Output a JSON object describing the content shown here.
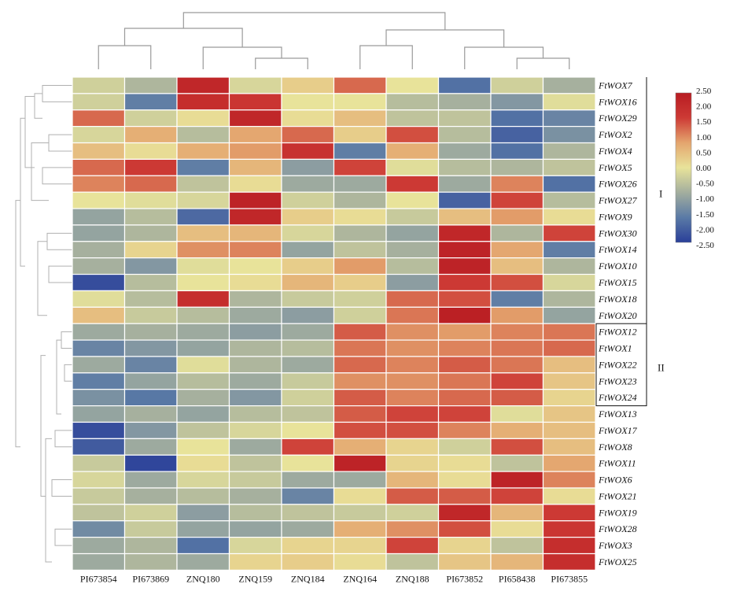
{
  "chart_data": {
    "type": "heatmap",
    "title": "",
    "columns": [
      "PI673854",
      "PI673869",
      "ZNQ180",
      "ZNQ159",
      "ZNQ184",
      "ZNQ164",
      "ZNQ188",
      "PI673852",
      "PI658438",
      "PI673855"
    ],
    "rows": [
      "FtWOX7",
      "FtWOX16",
      "FtWOX29",
      "FtWOX2",
      "FtWOX4",
      "FtWOX5",
      "FtWOX26",
      "FtWOX27",
      "FtWOX9",
      "FtWOX30",
      "FtWOX14",
      "FtWOX10",
      "FtWOX15",
      "FtWOX18",
      "FtWOX20",
      "FtWOX12",
      "FtWOX1",
      "FtWOX22",
      "FtWOX23",
      "FtWOX24",
      "FtWOX13",
      "FtWOX17",
      "FtWOX8",
      "FtWOX11",
      "FtWOX6",
      "FtWOX21",
      "FtWOX19",
      "FtWOX28",
      "FtWOX3",
      "FtWOX25"
    ],
    "values": [
      [
        -0.3,
        -0.7,
        2.2,
        -0.2,
        0.3,
        1.3,
        0.0,
        -1.8,
        -0.3,
        -0.8
      ],
      [
        -0.3,
        -1.6,
        2.0,
        1.8,
        0.0,
        0.0,
        -0.6,
        -0.8,
        -1.2,
        -0.1
      ],
      [
        1.3,
        -0.3,
        0.1,
        2.2,
        0.1,
        0.5,
        -0.5,
        -0.5,
        -1.8,
        -1.5
      ],
      [
        -0.2,
        0.7,
        -0.6,
        0.8,
        1.3,
        0.3,
        1.5,
        -0.6,
        -2.0,
        -1.3
      ],
      [
        0.5,
        0.1,
        0.7,
        0.9,
        1.9,
        -1.6,
        0.7,
        -0.9,
        -1.8,
        -0.7
      ],
      [
        1.3,
        1.7,
        -1.6,
        0.6,
        -1.1,
        1.6,
        -0.1,
        -0.6,
        -0.7,
        -0.5
      ],
      [
        1.1,
        1.3,
        -0.5,
        0.1,
        -0.9,
        -0.9,
        1.7,
        -0.9,
        1.1,
        -1.8
      ],
      [
        0.0,
        -0.1,
        -0.2,
        2.3,
        -0.3,
        -0.7,
        0.0,
        -2.0,
        1.6,
        -0.6
      ],
      [
        -1.0,
        -0.6,
        -1.9,
        2.2,
        0.3,
        0.1,
        -0.4,
        0.5,
        0.9,
        0.1
      ],
      [
        -1.0,
        -0.7,
        0.5,
        0.6,
        -0.2,
        -0.7,
        -1.0,
        2.2,
        -0.7,
        1.6
      ],
      [
        -0.8,
        0.2,
        1.0,
        1.1,
        -1.0,
        -0.5,
        -0.8,
        2.3,
        0.8,
        -1.6
      ],
      [
        -0.8,
        -1.2,
        -0.1,
        0.0,
        0.3,
        0.9,
        -0.6,
        2.3,
        0.5,
        -0.7
      ],
      [
        -2.3,
        -0.6,
        0.0,
        0.1,
        0.6,
        0.3,
        -1.1,
        1.7,
        1.5,
        -0.2
      ],
      [
        -0.1,
        -0.6,
        2.0,
        -0.7,
        -0.4,
        -0.3,
        1.3,
        1.5,
        -1.6,
        -0.7
      ],
      [
        0.5,
        -0.4,
        -0.6,
        -0.9,
        -1.1,
        -0.3,
        1.2,
        2.4,
        0.9,
        -1.0
      ],
      [
        -0.9,
        -0.8,
        -0.9,
        -1.1,
        -0.9,
        1.4,
        1.0,
        0.9,
        1.1,
        1.2
      ],
      [
        -1.5,
        -1.2,
        -1.0,
        -0.7,
        -0.6,
        1.2,
        1.0,
        1.1,
        1.2,
        1.3
      ],
      [
        -0.9,
        -1.5,
        -0.1,
        -0.7,
        -0.9,
        1.3,
        1.1,
        1.4,
        1.2,
        0.5
      ],
      [
        -1.6,
        -1.0,
        -0.6,
        -0.9,
        -0.4,
        1.0,
        1.0,
        1.2,
        1.6,
        0.4
      ],
      [
        -1.3,
        -1.7,
        -0.8,
        -1.2,
        -0.3,
        1.4,
        1.1,
        1.3,
        1.4,
        0.2
      ],
      [
        -1.0,
        -0.8,
        -1.0,
        -0.6,
        -0.5,
        1.4,
        1.6,
        1.6,
        -0.1,
        0.4
      ],
      [
        -2.3,
        -1.2,
        -0.5,
        -0.2,
        0.0,
        1.5,
        1.5,
        1.1,
        0.7,
        0.5
      ],
      [
        -2.1,
        -0.9,
        0.0,
        -0.9,
        1.6,
        0.7,
        0.2,
        -0.3,
        1.5,
        0.5
      ],
      [
        -0.4,
        -2.4,
        0.1,
        -0.5,
        0.0,
        2.3,
        0.2,
        0.1,
        -0.5,
        0.8
      ],
      [
        -0.2,
        -0.9,
        -0.2,
        -0.4,
        -0.9,
        -0.9,
        0.6,
        0.1,
        2.3,
        1.1
      ],
      [
        -0.4,
        -0.8,
        -0.6,
        -0.8,
        -1.5,
        0.1,
        1.4,
        1.4,
        1.6,
        0.1
      ],
      [
        -0.5,
        -0.3,
        -1.1,
        -0.6,
        -0.5,
        -0.4,
        -0.3,
        2.2,
        0.6,
        1.7
      ],
      [
        -1.4,
        -0.4,
        -1.0,
        -1.0,
        -0.9,
        0.7,
        1.0,
        1.5,
        0.1,
        1.8
      ],
      [
        -0.9,
        -0.7,
        -1.8,
        -0.2,
        0.2,
        0.2,
        1.6,
        0.2,
        -0.5,
        2.0
      ],
      [
        -0.9,
        -0.7,
        -0.9,
        0.2,
        0.3,
        0.1,
        -0.5,
        0.4,
        0.6,
        2.0
      ]
    ],
    "colorbar": {
      "ticks": [
        "2.50",
        "2.00",
        "1.50",
        "1.00",
        "0.50",
        "0.00",
        "-0.50",
        "-1.00",
        "-1.50",
        "-2.00",
        "-2.50"
      ],
      "range": [
        -2.5,
        2.5
      ],
      "stops": [
        "#2a3f99",
        "#5a7aa6",
        "#a3ae9e",
        "#e8e39a",
        "#e4a56e",
        "#cd3a35",
        "#b81c22"
      ]
    },
    "groups": [
      {
        "label": "I",
        "rows": [
          "FtWOX7",
          "FtWOX20"
        ]
      },
      {
        "label": "II",
        "rows": [
          "FtWOX12",
          "FtWOX24"
        ]
      }
    ],
    "grid": true,
    "legend_position": "right"
  }
}
